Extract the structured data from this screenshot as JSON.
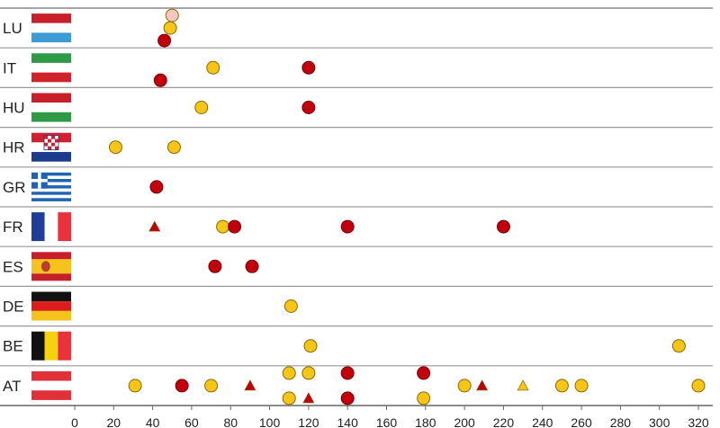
{
  "chart_data": {
    "type": "scatter",
    "countries": [
      {
        "code": "LU",
        "flag": "lu",
        "points": [
          {
            "x": 50,
            "lane": 0,
            "shape": "circle",
            "color": "#f4c7c3"
          },
          {
            "x": 49,
            "lane": 1,
            "shape": "circle",
            "color": "#f5c518"
          },
          {
            "x": 46,
            "lane": 2,
            "shape": "circle",
            "color": "#c0000c"
          }
        ]
      },
      {
        "code": "IT",
        "flag": "it",
        "points": [
          {
            "x": 44,
            "lane": 2,
            "shape": "circle",
            "color": "#c0000c"
          },
          {
            "x": 71,
            "lane": 1,
            "shape": "circle",
            "color": "#f5c518"
          },
          {
            "x": 120,
            "lane": 1,
            "shape": "circle",
            "color": "#c0000c"
          }
        ]
      },
      {
        "code": "HU",
        "flag": "hu",
        "points": [
          {
            "x": 65,
            "lane": 1,
            "shape": "circle",
            "color": "#f5c518"
          },
          {
            "x": 120,
            "lane": 1,
            "shape": "circle",
            "color": "#c0000c"
          }
        ]
      },
      {
        "code": "HR",
        "flag": "hr",
        "points": [
          {
            "x": 21,
            "lane": 1,
            "shape": "circle",
            "color": "#f5c518"
          },
          {
            "x": 51,
            "lane": 1,
            "shape": "circle",
            "color": "#f5c518"
          }
        ]
      },
      {
        "code": "GR",
        "flag": "gr",
        "points": [
          {
            "x": 42,
            "lane": 1,
            "shape": "circle",
            "color": "#c0000c"
          }
        ]
      },
      {
        "code": "FR",
        "flag": "fr",
        "points": [
          {
            "x": 41,
            "lane": 1,
            "shape": "triangle",
            "color": "#c0000c"
          },
          {
            "x": 76,
            "lane": 1,
            "shape": "circle",
            "color": "#f5c518"
          },
          {
            "x": 82,
            "lane": 1,
            "shape": "circle",
            "color": "#c0000c"
          },
          {
            "x": 140,
            "lane": 1,
            "shape": "circle",
            "color": "#c0000c"
          },
          {
            "x": 220,
            "lane": 1,
            "shape": "circle",
            "color": "#c0000c"
          }
        ]
      },
      {
        "code": "ES",
        "flag": "es",
        "points": [
          {
            "x": 72,
            "lane": 1,
            "shape": "circle",
            "color": "#c0000c"
          },
          {
            "x": 91,
            "lane": 1,
            "shape": "circle",
            "color": "#c0000c"
          }
        ]
      },
      {
        "code": "DE",
        "flag": "de",
        "points": [
          {
            "x": 111,
            "lane": 1,
            "shape": "circle",
            "color": "#f5c518"
          }
        ]
      },
      {
        "code": "BE",
        "flag": "be",
        "points": [
          {
            "x": 121,
            "lane": 1,
            "shape": "circle",
            "color": "#f5c518"
          },
          {
            "x": 310,
            "lane": 1,
            "shape": "circle",
            "color": "#f5c518"
          }
        ]
      },
      {
        "code": "AT",
        "flag": "at",
        "points": [
          {
            "x": 31,
            "lane": 1,
            "shape": "circle",
            "color": "#f5c518"
          },
          {
            "x": 55,
            "lane": 1,
            "shape": "circle",
            "color": "#c0000c"
          },
          {
            "x": 70,
            "lane": 1,
            "shape": "circle",
            "color": "#f5c518"
          },
          {
            "x": 90,
            "lane": 1,
            "shape": "triangle",
            "color": "#c0000c"
          },
          {
            "x": 110,
            "lane": 0,
            "shape": "circle",
            "color": "#f5c518"
          },
          {
            "x": 110,
            "lane": 2,
            "shape": "circle",
            "color": "#f5c518"
          },
          {
            "x": 120,
            "lane": 0,
            "shape": "circle",
            "color": "#f5c518"
          },
          {
            "x": 120,
            "lane": 2,
            "shape": "triangle",
            "color": "#c0000c"
          },
          {
            "x": 140,
            "lane": 0,
            "shape": "circle",
            "color": "#c0000c"
          },
          {
            "x": 140,
            "lane": 2,
            "shape": "circle",
            "color": "#c0000c"
          },
          {
            "x": 179,
            "lane": 0,
            "shape": "circle",
            "color": "#c0000c"
          },
          {
            "x": 179,
            "lane": 2,
            "shape": "circle",
            "color": "#f5c518"
          },
          {
            "x": 200,
            "lane": 1,
            "shape": "circle",
            "color": "#f5c518"
          },
          {
            "x": 209,
            "lane": 1,
            "shape": "triangle",
            "color": "#c0000c"
          },
          {
            "x": 230,
            "lane": 1,
            "shape": "triangle",
            "color": "#f5c518"
          },
          {
            "x": 250,
            "lane": 1,
            "shape": "circle",
            "color": "#f5c518"
          },
          {
            "x": 260,
            "lane": 1,
            "shape": "circle",
            "color": "#f5c518"
          },
          {
            "x": 320,
            "lane": 1,
            "shape": "circle",
            "color": "#f5c518"
          }
        ]
      }
    ],
    "xticks": [
      0,
      20,
      40,
      60,
      80,
      100,
      120,
      140,
      160,
      180,
      200,
      220,
      240,
      260,
      280,
      300,
      320
    ],
    "xlim": [
      0,
      320
    ],
    "grid": false,
    "colors": {
      "red": "#c0000c",
      "yellow": "#f5c518",
      "pink": "#f4c7c3"
    }
  }
}
